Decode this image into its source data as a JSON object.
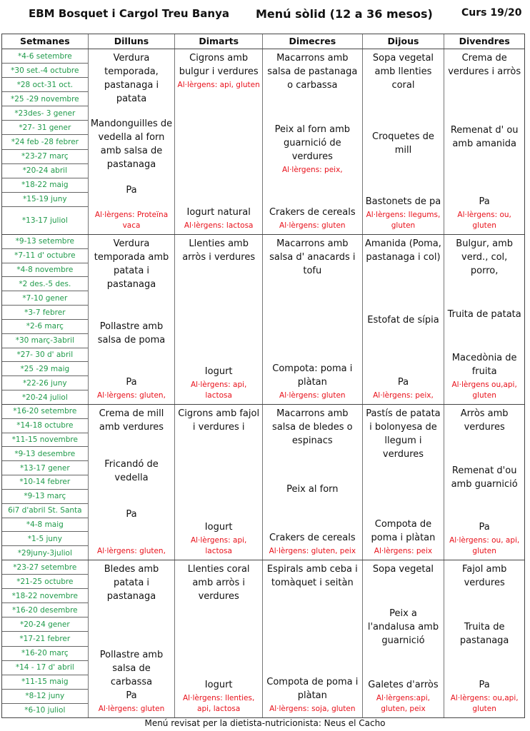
{
  "header": {
    "school": "EBM Bosquet i Cargol Treu Banya",
    "menu_title": "Menú sòlid (12 a 36 mesos)",
    "course": "Curs 19/20"
  },
  "columns": [
    "Setmanes",
    "Dilluns",
    "Dimarts",
    "Dimecres",
    "Dijous",
    "Divendres"
  ],
  "colors": {
    "dates": "#1f9a4a",
    "allergens": "#e8101a",
    "text": "#111111"
  },
  "weeks": [
    {
      "dates": [
        "*4-6 setembre",
        "*30 set.-4  octubre",
        "*28 oct-31 oct.",
        "*25 -29 novembre",
        "*23des- 3 gener",
        "*27- 31 gener",
        "*24 feb -28 febrer",
        "*23-27 març",
        "*20-24 abril",
        "*18-22 maig",
        "*15-19 juny",
        "*13-17 juliol"
      ],
      "days": [
        [
          [
            {
              "dish": "Verdura temporada, pastanaga i patata"
            }
          ],
          [
            {
              "dish": "Mandonguilles de vedella al forn amb salsa de pastanaga"
            }
          ],
          [
            {
              "dish": "Pa"
            }
          ],
          [
            {
              "allergen": "Al·lèrgens: Proteïna vaca"
            }
          ]
        ],
        [
          [
            {
              "dish": "Cigrons amb bulgur i verdures"
            },
            {
              "allergen": "Al·lèrgens: api, gluten"
            }
          ],
          [
            {
              "dish": "Iogurt natural"
            },
            {
              "allergen": "Al·lèrgens:  lactosa"
            }
          ]
        ],
        [
          [
            {
              "dish": "Macarrons amb salsa de pastanaga o carbassa"
            }
          ],
          [
            {
              "dish": "Peix al forn amb guarnició de verdures"
            },
            {
              "allergen": "Al·lèrgens: peix,"
            }
          ],
          [
            {
              "dish": "Crakers de cereals"
            },
            {
              "allergen": "Al·lèrgens:  gluten"
            }
          ]
        ],
        [
          [
            {
              "dish": "Sopa vegetal amb llenties coral"
            }
          ],
          [
            {
              "dish": "Croquetes de mill"
            }
          ],
          [
            {
              "dish": "Bastonets de pa"
            },
            {
              "allergen": "Al·lèrgens: llegums, gluten"
            }
          ]
        ],
        [
          [
            {
              "dish": "Crema de verdures i arròs"
            }
          ],
          [
            {
              "dish": "Remenat d' ou amb amanida"
            }
          ],
          [
            {
              "dish": "Pa"
            },
            {
              "allergen": "Al·lèrgens: ou, gluten"
            }
          ]
        ]
      ]
    },
    {
      "dates": [
        "*9-13 setembre",
        "*7-11 d' octubre",
        "*4-8 novembre",
        "*2 des.-5 des.",
        "*7-10  gener",
        "*3-7 febrer",
        "*2-6 març",
        "*30 març-3abril",
        "*27- 30 d' abril",
        "*25 -29 maig",
        "*22-26 juny",
        "*20-24 juliol"
      ],
      "days": [
        [
          [
            {
              "dish": "Verdura temporada amb patata i pastanaga"
            }
          ],
          [
            {
              "dish": "Pollastre amb salsa de poma"
            }
          ],
          [
            {
              "dish": "Pa"
            },
            {
              "allergen": "Al·lèrgens: gluten,"
            }
          ]
        ],
        [
          [
            {
              "dish": "Llenties amb arròs i verdures"
            }
          ],
          [
            {
              "dish": "Iogurt"
            },
            {
              "allergen": "Al·lèrgens: api, lactosa"
            }
          ]
        ],
        [
          [
            {
              "dish": "Macarrons amb salsa d' anacards i tofu"
            }
          ],
          [
            {
              "dish": "Compota: poma i plàtan"
            },
            {
              "allergen": "Al·lèrgens: gluten"
            }
          ]
        ],
        [
          [
            {
              "dish": "Amanida (Poma, pastanaga i col)"
            }
          ],
          [
            {
              "dish": "Estofat de sípia"
            }
          ],
          [
            {
              "dish": "Pa"
            },
            {
              "allergen": "Al·lèrgens: peix,"
            }
          ]
        ],
        [
          [
            {
              "dish": "Bulgur, amb verd., col, porro,"
            }
          ],
          [
            {
              "dish": "Truita de patata"
            }
          ],
          [
            {
              "dish": "Macedònia de fruita"
            },
            {
              "allergen": "Al·lèrgens ou,api, gluten"
            }
          ]
        ]
      ]
    },
    {
      "dates": [
        "*16-20 setembre",
        "*14-18 octubre",
        "*11-15 novembre",
        "*9-13 desembre",
        "*13-17 gener",
        "*10-14 febrer",
        "*9-13 març",
        "6i7 d'abril St. Santa",
        "*4-8 maig",
        "*1-5 juny",
        "*29juny-3juliol"
      ],
      "days": [
        [
          [
            {
              "dish": "Crema de mill amb verdures"
            }
          ],
          [
            {
              "dish": "Fricandó de vedella"
            }
          ],
          [
            {
              "dish": "Pa"
            }
          ],
          [
            {
              "allergen": "Al·lèrgens: gluten,"
            }
          ]
        ],
        [
          [
            {
              "dish": "Cigrons amb fajol i verdures i"
            }
          ],
          [
            {
              "dish": "Iogurt"
            },
            {
              "allergen": "Al·lèrgens:  api, lactosa"
            }
          ]
        ],
        [
          [
            {
              "dish": "Macarrons amb salsa de bledes o espinacs"
            }
          ],
          [
            {
              "dish": "Peix al forn"
            }
          ],
          [
            {
              "dish": "Crakers de cereals"
            },
            {
              "allergen": "Al·lèrgens:  gluten, peix"
            }
          ]
        ],
        [
          [
            {
              "dish": "Pastís de patata i bolonyesa de llegum i verdures"
            }
          ],
          [
            {
              "dish": "Compota de poma i plàtan"
            },
            {
              "allergen": "Al·lèrgens:   peix"
            }
          ]
        ],
        [
          [
            {
              "dish": "Arròs amb verdures"
            }
          ],
          [
            {
              "dish": "Remenat d'ou amb guarnició"
            }
          ],
          [
            {
              "dish": "Pa"
            },
            {
              "allergen": "Al·lèrgens: ou, api, gluten"
            }
          ]
        ]
      ]
    },
    {
      "dates": [
        "*23-27 setembre",
        "*21-25 octubre",
        "*18-22 novembre",
        "*16-20 desembre",
        "*20-24 gener",
        "*17-21 febrer",
        "*16-20 març",
        "*14 - 17 d' abril",
        "*11-15 maig",
        "*8-12 juny",
        "*6-10 juliol"
      ],
      "days": [
        [
          [
            {
              "dish": "Bledes amb patata i pastanaga"
            }
          ],
          [
            {
              "dish": "Pollastre amb salsa de carbassa"
            },
            {
              "dish": "Pa"
            },
            {
              "allergen": "Al·lèrgens: gluten"
            }
          ]
        ],
        [
          [
            {
              "dish": "Llenties coral amb arròs i verdures"
            }
          ],
          [
            {
              "dish": "Iogurt"
            },
            {
              "allergen": "Al·lèrgens: llenties, api, lactosa"
            }
          ]
        ],
        [
          [
            {
              "dish": "Espirals amb ceba i tomàquet i seitàn"
            }
          ],
          [
            {
              "dish": "Compota de poma i plàtan"
            },
            {
              "allergen": "Al·lèrgens:  soja, gluten"
            }
          ]
        ],
        [
          [
            {
              "dish": "Sopa vegetal"
            }
          ],
          [
            {
              "dish": "Peix a l'andalusa amb guarnició"
            }
          ],
          [
            {
              "dish": "Galetes d'arròs"
            },
            {
              "allergen": "Al·lèrgens:api, gluten, peix"
            }
          ]
        ],
        [
          [
            {
              "dish": "Fajol amb verdures"
            }
          ],
          [
            {
              "dish": "Truita de pastanaga"
            }
          ],
          [
            {
              "dish": "Pa"
            },
            {
              "allergen": "Al·lèrgens: ou,api, gluten"
            }
          ]
        ]
      ]
    }
  ],
  "footer": "Menú revisat per la dietista-nutricionista: Neus el Cacho"
}
